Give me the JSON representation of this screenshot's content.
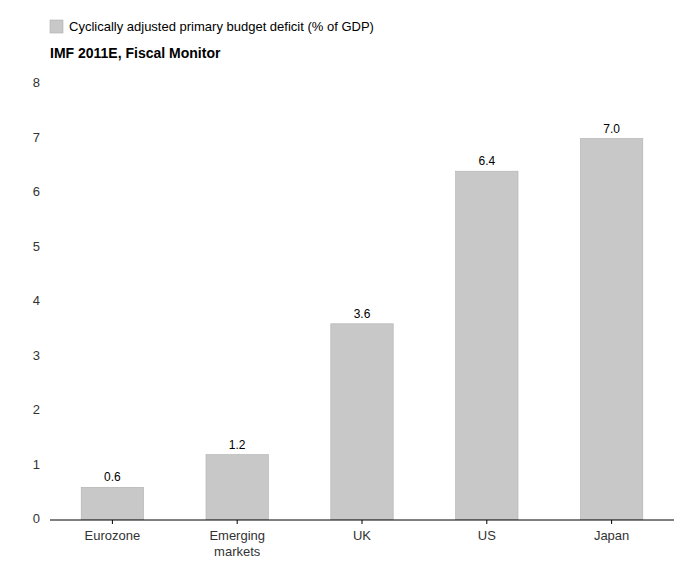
{
  "chart_data": {
    "type": "bar",
    "subtitle": "IMF 2011E, Fiscal Monitor",
    "categories": [
      "Eurozone",
      "Emerging\nmarkets",
      "UK",
      "US",
      "Japan"
    ],
    "series": [
      {
        "name": "Cyclically adjusted primary budget deficit (% of GDP)",
        "color": "#c8c8c8",
        "values": [
          0.6,
          1.2,
          3.6,
          6.4,
          7.0
        ],
        "value_labels": [
          "0.6",
          "1.2",
          "3.6",
          "6.4",
          "7.0"
        ]
      }
    ],
    "ylim": [
      0,
      8
    ],
    "yticks": [
      0,
      1,
      2,
      3,
      4,
      5,
      6,
      7,
      8
    ],
    "grid": false,
    "legend": "upper left",
    "data_labels": true
  }
}
